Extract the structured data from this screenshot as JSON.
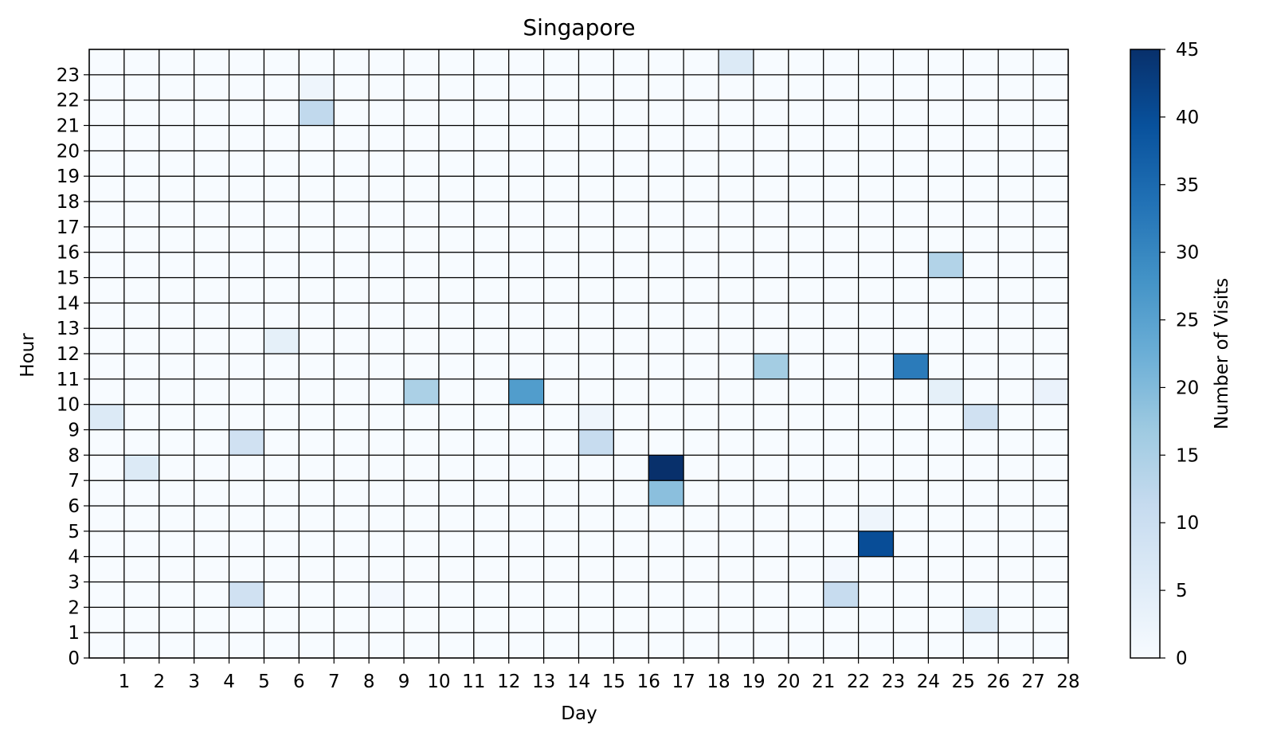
{
  "chart_data": {
    "type": "heatmap",
    "title": "Singapore",
    "xlabel": "Day",
    "ylabel": "Hour",
    "colorbar_label": "Number of Visits",
    "colormap": "Blues",
    "vmin": 0,
    "vmax": 45,
    "x_cells": 28,
    "y_cells": 24,
    "x_tick_labels": [
      "1",
      "2",
      "3",
      "4",
      "5",
      "6",
      "7",
      "8",
      "9",
      "10",
      "11",
      "12",
      "13",
      "14",
      "15",
      "16",
      "17",
      "18",
      "19",
      "20",
      "21",
      "22",
      "23",
      "24",
      "25",
      "26",
      "27",
      "28"
    ],
    "y_tick_labels": [
      "0",
      "1",
      "2",
      "3",
      "4",
      "5",
      "6",
      "7",
      "8",
      "9",
      "10",
      "11",
      "12",
      "13",
      "14",
      "15",
      "16",
      "17",
      "18",
      "19",
      "20",
      "21",
      "22",
      "23"
    ],
    "colorbar_ticks": [
      0,
      5,
      10,
      15,
      20,
      25,
      30,
      35,
      40,
      45
    ],
    "grid": true,
    "legend": "colorbar-right",
    "cells": [
      {
        "day": 18,
        "hour": 23,
        "value": 6
      },
      {
        "day": 6,
        "hour": 22,
        "value": 2
      },
      {
        "day": 6,
        "hour": 21,
        "value": 12
      },
      {
        "day": 24,
        "hour": 15,
        "value": 14
      },
      {
        "day": 5,
        "hour": 12,
        "value": 4
      },
      {
        "day": 19,
        "hour": 11,
        "value": 16
      },
      {
        "day": 23,
        "hour": 11,
        "value": 32
      },
      {
        "day": 9,
        "hour": 10,
        "value": 15
      },
      {
        "day": 12,
        "hour": 10,
        "value": 26
      },
      {
        "day": 24,
        "hour": 10,
        "value": 4
      },
      {
        "day": 27,
        "hour": 10,
        "value": 3
      },
      {
        "day": 0,
        "hour": 9,
        "value": 6
      },
      {
        "day": 14,
        "hour": 9,
        "value": 2
      },
      {
        "day": 25,
        "hour": 9,
        "value": 9
      },
      {
        "day": 4,
        "hour": 8,
        "value": 9
      },
      {
        "day": 14,
        "hour": 8,
        "value": 11
      },
      {
        "day": 1,
        "hour": 7,
        "value": 6
      },
      {
        "day": 16,
        "hour": 7,
        "value": 45
      },
      {
        "day": 16,
        "hour": 6,
        "value": 19
      },
      {
        "day": 22,
        "hour": 5,
        "value": 2
      },
      {
        "day": 22,
        "hour": 4,
        "value": 40
      },
      {
        "day": 21,
        "hour": 3,
        "value": 1
      },
      {
        "day": 4,
        "hour": 2,
        "value": 9
      },
      {
        "day": 8,
        "hour": 2,
        "value": 1
      },
      {
        "day": 21,
        "hour": 2,
        "value": 11
      },
      {
        "day": 25,
        "hour": 1,
        "value": 6
      }
    ]
  }
}
